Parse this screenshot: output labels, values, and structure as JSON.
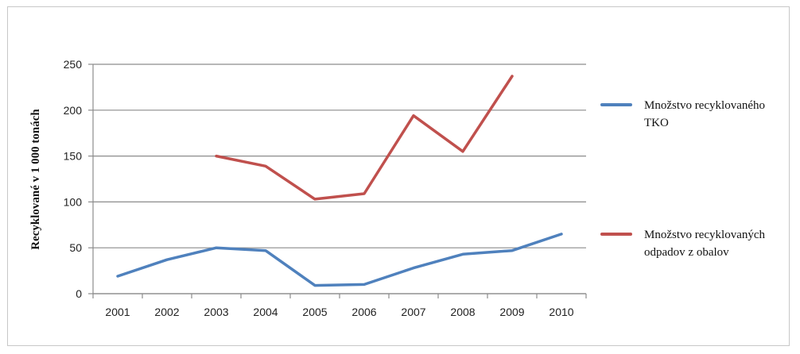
{
  "chart_data": {
    "type": "line",
    "title": "",
    "xlabel": "",
    "ylabel": "Recyklované  v 1 000 tonách",
    "ylim": [
      0,
      250
    ],
    "yticks": [
      0,
      50,
      100,
      150,
      200,
      250
    ],
    "categories": [
      "2001",
      "2002",
      "2003",
      "2004",
      "2005",
      "2006",
      "2007",
      "2008",
      "2009",
      "2010"
    ],
    "grid": "horizontal",
    "legend_position": "right",
    "series": [
      {
        "name_lines": [
          "Množstvo recyklovaného",
          "TKO"
        ],
        "color": "#4f81bd",
        "values": [
          19,
          37,
          50,
          47,
          9,
          10,
          28,
          43,
          47,
          65
        ]
      },
      {
        "name_lines": [
          "Množstvo recyklovaných",
          "odpadov z obalov"
        ],
        "color": "#c0504d",
        "values": [
          null,
          null,
          150,
          139,
          103,
          109,
          194,
          155,
          237,
          null
        ]
      }
    ]
  }
}
